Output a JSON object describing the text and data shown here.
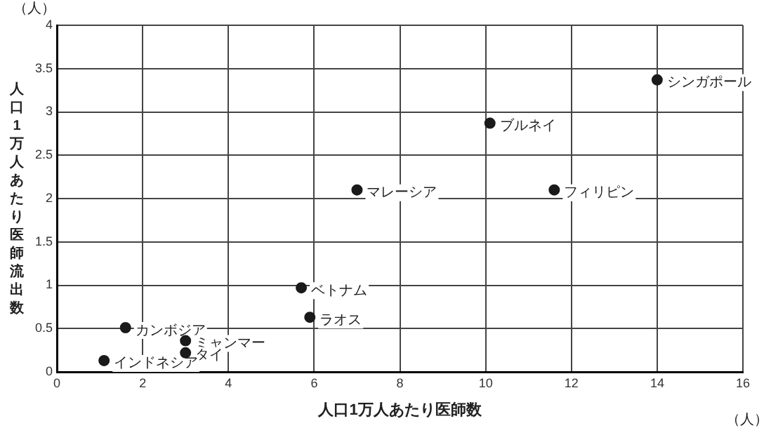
{
  "chart_data": {
    "type": "scatter",
    "xlabel": "人口1万人あたり医師数",
    "ylabel": "人口1万人あたり医師流出数",
    "x": [
      14,
      10.1,
      7.0,
      11.6,
      5.7,
      5.9,
      1.6,
      3.0,
      3.0,
      1.1
    ],
    "series": [
      {
        "color": "#1a1a1a",
        "values": [
          3.37,
          2.87,
          2.1,
          2.1,
          0.97,
          0.63,
          0.51,
          0.36,
          0.22,
          0.13
        ]
      }
    ],
    "xlim": [
      0,
      16
    ],
    "xticks": [
      0,
      2,
      4,
      6,
      8,
      10,
      12,
      14,
      16
    ],
    "ylim": [
      0,
      4
    ],
    "yticks": [
      0,
      0.5,
      1,
      1.5,
      2,
      2.5,
      3,
      3.5,
      4
    ],
    "grid": true,
    "marker": "circle",
    "annotations": [
      "（人）",
      "（人）",
      {
        "text": "シンガポール",
        "x": 14,
        "y": 3.37
      },
      {
        "text": "ブルネイ",
        "x": 10.1,
        "y": 2.87
      },
      {
        "text": "マレーシア",
        "x": 7.0,
        "y": 2.1
      },
      {
        "text": "フィリピン",
        "x": 11.6,
        "y": 2.1
      },
      {
        "text": "ベトナム",
        "x": 5.7,
        "y": 0.97
      },
      {
        "text": "ラオス",
        "x": 5.9,
        "y": 0.63
      },
      {
        "text": "カンボジア",
        "x": 1.6,
        "y": 0.51
      },
      {
        "text": "ミャンマー",
        "x": 3.0,
        "y": 0.36
      },
      {
        "text": "タイ",
        "x": 3.0,
        "y": 0.22
      },
      {
        "text": "インドネシア",
        "x": 1.1,
        "y": 0.13
      }
    ]
  }
}
